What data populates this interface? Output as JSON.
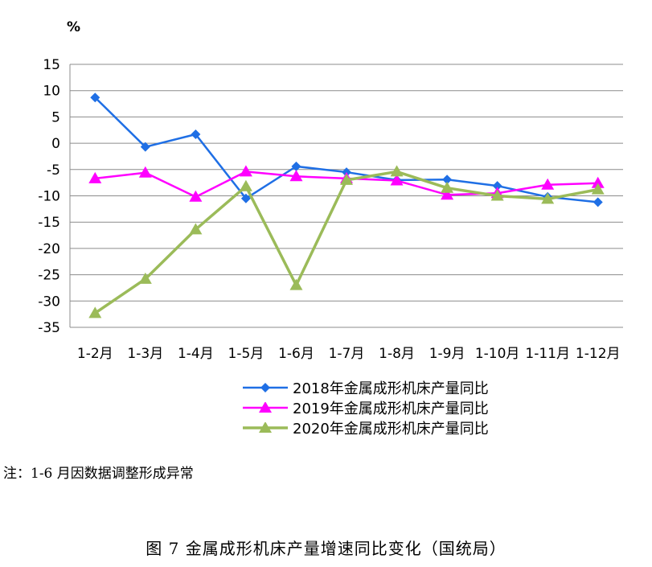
{
  "chart_data": {
    "type": "line",
    "unit": "%",
    "categories": [
      "1-2月",
      "1-3月",
      "1-4月",
      "1-5月",
      "1-6月",
      "1-7月",
      "1-8月",
      "1-9月",
      "1-10月",
      "1-11月",
      "1-12月"
    ],
    "ylim": [
      -35,
      15
    ],
    "yticks": [
      15,
      10,
      5,
      0,
      -5,
      -10,
      -15,
      -20,
      -25,
      -30,
      -35
    ],
    "grid": true,
    "legend_position": "bottom",
    "series": [
      {
        "name": "2018年金属成形机床产量同比",
        "color": "#1F6FE5",
        "marker": "diamond",
        "values": [
          8.7,
          -0.7,
          1.7,
          -10.5,
          -4.4,
          -5.5,
          -7.0,
          -6.9,
          -8.1,
          -10.2,
          -11.2
        ]
      },
      {
        "name": "2019年金属成形机床产量同比",
        "color": "#FF00FF",
        "marker": "triangle",
        "values": [
          -6.7,
          -5.6,
          -10.2,
          -5.4,
          -6.3,
          -6.7,
          -7.1,
          -9.8,
          -9.5,
          -7.9,
          -7.6
        ]
      },
      {
        "name": "2020年金属成形机床产量同比",
        "color": "#9BBB59",
        "marker": "triangle",
        "values": [
          -32.3,
          -25.8,
          -16.4,
          -8.2,
          -27.0,
          -7.0,
          -5.4,
          -8.5,
          -10.0,
          -10.6,
          -8.8
        ]
      }
    ]
  },
  "note": "注：1-6 月因数据调整形成异常",
  "caption": "图 7  金属成形机床产量增速同比变化（国统局）"
}
